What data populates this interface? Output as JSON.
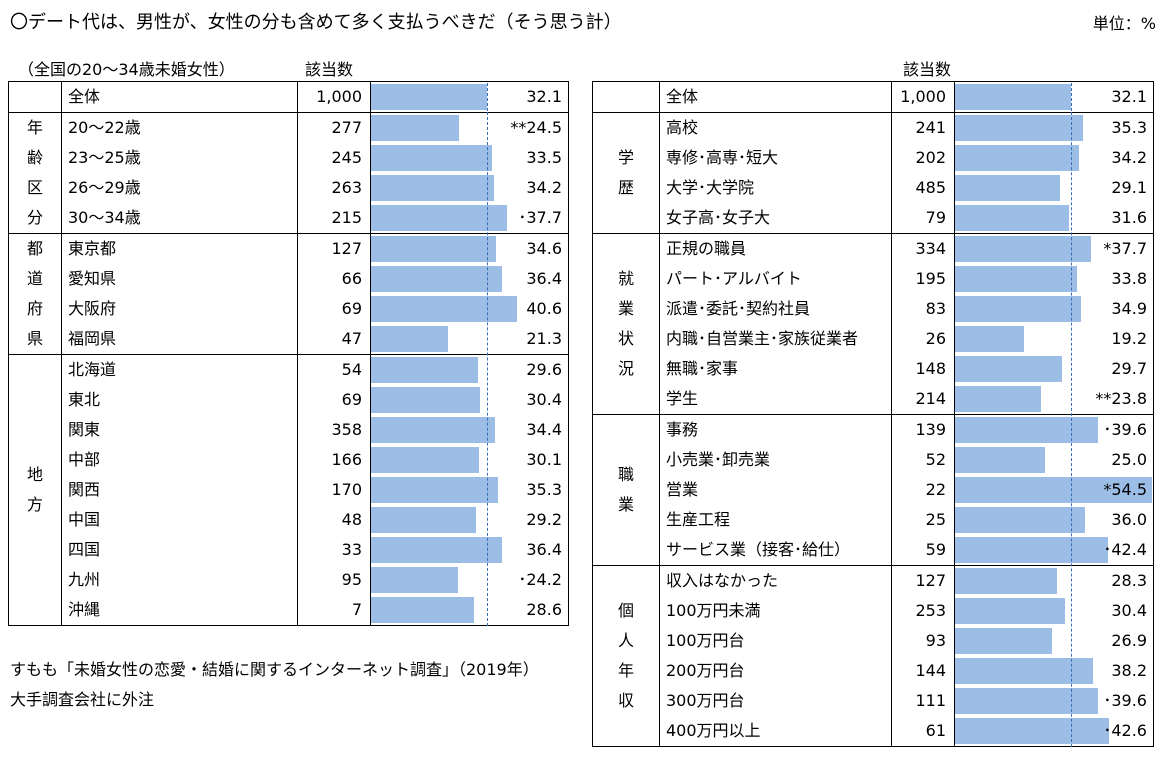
{
  "title": "〇デート代は、男性が、女性の分も含めて多く支払うべきだ（そう思う計）",
  "unit": "単位：%",
  "subtitle": "（全国の20～34歳未婚女性）",
  "count_header": "該当数",
  "notes": [
    "すもも「未婚女性の恋愛・結婚に関するインターネット調査」（2019年）",
    "大手調査会社に外注"
  ],
  "chart_data": {
    "type": "bar",
    "xlim": [
      0,
      55
    ],
    "average": 32.1,
    "tables": [
      {
        "groups": [
          {
            "category": "",
            "rows": [
              {
                "label": "全体",
                "n": "1,000",
                "value": 32.1,
                "display": "32.1"
              }
            ]
          },
          {
            "category": "年齢区分",
            "rows": [
              {
                "label": "20～22歳",
                "n": "277",
                "value": 24.5,
                "display": "**24.5"
              },
              {
                "label": "23～25歳",
                "n": "245",
                "value": 33.5,
                "display": "33.5"
              },
              {
                "label": "26～29歳",
                "n": "263",
                "value": 34.2,
                "display": "34.2"
              },
              {
                "label": "30～34歳",
                "n": "215",
                "value": 37.7,
                "display": "･37.7"
              }
            ]
          },
          {
            "category": "都道府県",
            "rows": [
              {
                "label": "東京都",
                "n": "127",
                "value": 34.6,
                "display": "34.6"
              },
              {
                "label": "愛知県",
                "n": "66",
                "value": 36.4,
                "display": "36.4"
              },
              {
                "label": "大阪府",
                "n": "69",
                "value": 40.6,
                "display": "40.6"
              },
              {
                "label": "福岡県",
                "n": "47",
                "value": 21.3,
                "display": "21.3"
              }
            ]
          },
          {
            "category": "地方",
            "rows": [
              {
                "label": "北海道",
                "n": "54",
                "value": 29.6,
                "display": "29.6"
              },
              {
                "label": "東北",
                "n": "69",
                "value": 30.4,
                "display": "30.4"
              },
              {
                "label": "関東",
                "n": "358",
                "value": 34.4,
                "display": "34.4"
              },
              {
                "label": "中部",
                "n": "166",
                "value": 30.1,
                "display": "30.1"
              },
              {
                "label": "関西",
                "n": "170",
                "value": 35.3,
                "display": "35.3"
              },
              {
                "label": "中国",
                "n": "48",
                "value": 29.2,
                "display": "29.2"
              },
              {
                "label": "四国",
                "n": "33",
                "value": 36.4,
                "display": "36.4"
              },
              {
                "label": "九州",
                "n": "95",
                "value": 24.2,
                "display": "･24.2"
              },
              {
                "label": "沖縄",
                "n": "7",
                "value": 28.6,
                "display": "28.6"
              }
            ]
          }
        ]
      },
      {
        "groups": [
          {
            "category": "",
            "rows": [
              {
                "label": "全体",
                "n": "1,000",
                "value": 32.1,
                "display": "32.1"
              }
            ]
          },
          {
            "category": "学歴",
            "rows": [
              {
                "label": "高校",
                "n": "241",
                "value": 35.3,
                "display": "35.3"
              },
              {
                "label": "専修･高専･短大",
                "n": "202",
                "value": 34.2,
                "display": "34.2"
              },
              {
                "label": "大学･大学院",
                "n": "485",
                "value": 29.1,
                "display": "29.1"
              },
              {
                "label": "女子高･女子大",
                "n": "79",
                "value": 31.6,
                "display": "31.6"
              }
            ]
          },
          {
            "category": "就業状況",
            "rows": [
              {
                "label": "正規の職員",
                "n": "334",
                "value": 37.7,
                "display": "*37.7"
              },
              {
                "label": "パート･アルバイト",
                "n": "195",
                "value": 33.8,
                "display": "33.8"
              },
              {
                "label": "派遣･委託･契約社員",
                "n": "83",
                "value": 34.9,
                "display": "34.9"
              },
              {
                "label": "内職･自営業主･家族従業者",
                "n": "26",
                "value": 19.2,
                "display": "19.2"
              },
              {
                "label": "無職･家事",
                "n": "148",
                "value": 29.7,
                "display": "29.7"
              },
              {
                "label": "学生",
                "n": "214",
                "value": 23.8,
                "display": "**23.8"
              }
            ]
          },
          {
            "category": "職業",
            "rows": [
              {
                "label": "事務",
                "n": "139",
                "value": 39.6,
                "display": "･39.6"
              },
              {
                "label": "小売業･卸売業",
                "n": "52",
                "value": 25.0,
                "display": "25.0"
              },
              {
                "label": "営業",
                "n": "22",
                "value": 54.5,
                "display": "*54.5"
              },
              {
                "label": "生産工程",
                "n": "25",
                "value": 36.0,
                "display": "36.0"
              },
              {
                "label": "サービス業（接客･給仕）",
                "n": "59",
                "value": 42.4,
                "display": "･42.4"
              }
            ]
          },
          {
            "category": "個人年収",
            "rows": [
              {
                "label": "収入はなかった",
                "n": "127",
                "value": 28.3,
                "display": "28.3"
              },
              {
                "label": "100万円未満",
                "n": "253",
                "value": 30.4,
                "display": "30.4"
              },
              {
                "label": "100万円台",
                "n": "93",
                "value": 26.9,
                "display": "26.9"
              },
              {
                "label": "200万円台",
                "n": "144",
                "value": 38.2,
                "display": "38.2"
              },
              {
                "label": "300万円台",
                "n": "111",
                "value": 39.6,
                "display": "･39.6"
              },
              {
                "label": "400万円以上",
                "n": "61",
                "value": 42.6,
                "display": "･42.6"
              }
            ]
          }
        ]
      }
    ]
  }
}
